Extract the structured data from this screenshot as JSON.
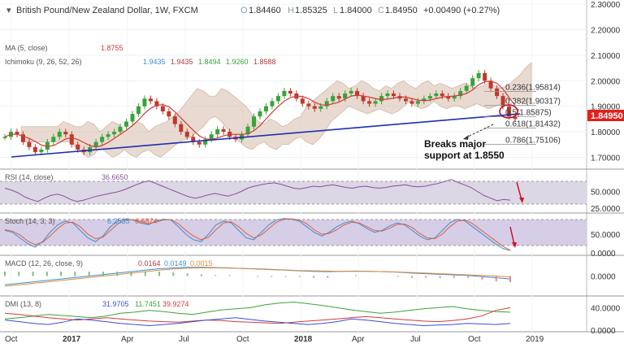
{
  "header": {
    "symbol": "British Pound/New Zealand Dollar, 1W, FXCM",
    "o_label": "O",
    "o": "1.84460",
    "h_label": "H",
    "h": "1.85325",
    "l_label": "L",
    "l": "1.84000",
    "c_label": "C",
    "c": "1.84950",
    "change": "+0.00490 (+0.27%)"
  },
  "overlay_legend": {
    "ma": {
      "label": "MA (5, close)",
      "value": "1.8755"
    },
    "ichimoku": {
      "label": "Ichimoku (9, 26, 52, 26)",
      "v1": "1.9435",
      "v2": "1.9435",
      "v3": "1.8494",
      "v4": "1.9260",
      "v5": "1.8588"
    }
  },
  "colors": {
    "up": "#3aa33a",
    "down": "#c0392b",
    "ma": "#d33a3a",
    "cloud": "#d9c2b0",
    "cloud_green": "#cfe6c0",
    "trend": "#1f2fb0",
    "rsi": "#8a4f9e",
    "stoch_k": "#3a8fd6",
    "stoch_d": "#e0603a",
    "macd": "#3a8fd6",
    "signal": "#e08a3a",
    "dmi_plus": "#3aa33a",
    "dmi_minus": "#d33a3a",
    "adx": "#3a4fd6",
    "price_tag": "#e0201c"
  },
  "chart_data": [
    {
      "type": "line",
      "title": "British Pound/New Zealand Dollar, 1W, FXCM",
      "y_axis": {
        "ticks": [
          "2.30000",
          "2.20000",
          "2.10000",
          "2.00000",
          "1.90000",
          "1.80000",
          "1.70000"
        ],
        "ylim": [
          1.66,
          2.31
        ]
      },
      "x_axis": {
        "ticks": [
          "Oct",
          "2017",
          "Apr",
          "Jul",
          "Oct",
          "2018",
          "Apr",
          "Jul",
          "Oct",
          "2019"
        ]
      },
      "last_price": "1.84950",
      "fib_levels": [
        {
          "label": "0.236(1.95814)",
          "value": 1.95814
        },
        {
          "label": "0.382(1.90317)",
          "value": 1.90317
        },
        {
          "label": "0.5(1.85875)",
          "value": 1.85875
        },
        {
          "label": "0.618(1.81432)",
          "value": 1.81432
        },
        {
          "label": "0.786(1.75106)",
          "value": 1.75106
        }
      ],
      "annotation": {
        "line1": "Breaks major",
        "line2": "support at 1.8550"
      },
      "series": [
        {
          "values": [
            1.78,
            1.8,
            1.79,
            1.76,
            1.74,
            1.72,
            1.73,
            1.76,
            1.78,
            1.8,
            1.79,
            1.75,
            1.73,
            1.72,
            1.74,
            1.76,
            1.78,
            1.79,
            1.8,
            1.82,
            1.84,
            1.87,
            1.9,
            1.93,
            1.92,
            1.9,
            1.88,
            1.86,
            1.83,
            1.8,
            1.78,
            1.76,
            1.75,
            1.77,
            1.79,
            1.81,
            1.8,
            1.78,
            1.77,
            1.79,
            1.82,
            1.86,
            1.88,
            1.9,
            1.92,
            1.94,
            1.96,
            1.95,
            1.93,
            1.91,
            1.9,
            1.89,
            1.9,
            1.92,
            1.94,
            1.93,
            1.95,
            1.96,
            1.94,
            1.92,
            1.91,
            1.92,
            1.94,
            1.95,
            1.94,
            1.93,
            1.92,
            1.91,
            1.92,
            1.93,
            1.94,
            1.95,
            1.94,
            1.93,
            1.94,
            1.96,
            1.98,
            2.01,
            2.03,
            2.0,
            1.97,
            1.94,
            1.9,
            1.86,
            1.85
          ]
        }
      ]
    },
    {
      "type": "line",
      "title": "RSI (14, close)",
      "value_label": "36.6650",
      "y_axis": {
        "ticks": [
          "50.0000",
          "25.0000"
        ],
        "ylim": [
          20,
          80
        ]
      },
      "band": [
        30,
        70
      ],
      "series": [
        {
          "values": [
            55,
            52,
            48,
            42,
            38,
            35,
            40,
            44,
            46,
            43,
            38,
            35,
            37,
            40,
            43,
            45,
            47,
            49,
            52,
            56,
            60,
            64,
            66,
            62,
            58,
            54,
            50,
            46,
            42,
            40,
            42,
            45,
            47,
            45,
            43,
            46,
            50,
            55,
            58,
            60,
            62,
            63,
            61,
            58,
            55,
            54,
            56,
            58,
            57,
            59,
            60,
            58,
            56,
            55,
            57,
            58,
            56,
            55,
            56,
            58,
            59,
            60,
            58,
            57,
            58,
            60,
            62,
            65,
            68,
            64,
            60,
            56,
            50,
            44,
            40,
            36,
            38,
            37
          ]
        }
      ]
    },
    {
      "type": "line",
      "title": "Stoch (14, 3, 3)",
      "values_label": [
        "6.2535",
        "6.6874"
      ],
      "y_axis": {
        "ticks": [
          "50.0000",
          "0.0000"
        ],
        "ylim": [
          0,
          100
        ]
      },
      "band": [
        20,
        80
      ],
      "series": [
        {
          "values": [
            60,
            55,
            40,
            25,
            15,
            30,
            55,
            75,
            85,
            80,
            60,
            40,
            30,
            45,
            70,
            85,
            90,
            88,
            80,
            75,
            85,
            90,
            88,
            70,
            50,
            35,
            30,
            50,
            75,
            85,
            80,
            60,
            40,
            35,
            55,
            75,
            88,
            92,
            90,
            85,
            70,
            55,
            45,
            55,
            70,
            80,
            85,
            78,
            65,
            55,
            60,
            72,
            80,
            75,
            60,
            45,
            35,
            40,
            60,
            80,
            90,
            85,
            70,
            55,
            40,
            25,
            12,
            6
          ]
        },
        {
          "values": [
            62,
            58,
            48,
            32,
            22,
            28,
            45,
            65,
            80,
            82,
            70,
            50,
            38,
            42,
            60,
            78,
            88,
            89,
            84,
            78,
            82,
            88,
            89,
            78,
            60,
            45,
            35,
            42,
            62,
            80,
            83,
            70,
            52,
            40,
            48,
            65,
            82,
            90,
            91,
            88,
            78,
            62,
            50,
            52,
            62,
            75,
            82,
            80,
            70,
            60,
            58,
            66,
            76,
            77,
            68,
            52,
            40,
            38,
            50,
            70,
            85,
            88,
            78,
            63,
            48,
            33,
            18,
            7
          ]
        }
      ]
    },
    {
      "type": "line",
      "title": "MACD (12, 26, close, 9)",
      "values_label": [
        "0.0164",
        "0.0149",
        "0.0015"
      ],
      "y_axis": {
        "ticks": [
          "0.0000"
        ],
        "ylim": [
          -0.06,
          0.06
        ]
      },
      "series": [
        {
          "values": [
            -0.03,
            -0.025,
            -0.02,
            -0.015,
            -0.01,
            -0.005,
            0.0,
            0.005,
            0.01,
            0.015,
            0.02,
            0.025,
            0.028,
            0.03,
            0.03,
            0.029,
            0.028,
            0.026,
            0.024,
            0.022,
            0.02,
            0.018,
            0.016,
            0.015,
            0.016,
            0.017,
            0.016,
            0.015,
            0.013,
            0.01,
            0.008,
            0.006,
            0.004,
            0.002,
            -0.002,
            -0.006,
            -0.01
          ]
        },
        {
          "values": [
            -0.035,
            -0.03,
            -0.025,
            -0.02,
            -0.015,
            -0.01,
            -0.005,
            0.0,
            0.005,
            0.01,
            0.015,
            0.02,
            0.024,
            0.027,
            0.028,
            0.028,
            0.027,
            0.026,
            0.025,
            0.023,
            0.021,
            0.019,
            0.018,
            0.017,
            0.016,
            0.016,
            0.016,
            0.015,
            0.014,
            0.012,
            0.01,
            0.008,
            0.006,
            0.004,
            0.002,
            0.0,
            -0.003
          ]
        }
      ]
    },
    {
      "type": "line",
      "title": "DMI (13, 8)",
      "values_label": [
        "31.9705",
        "11.7451",
        "39.9274"
      ],
      "y_axis": {
        "ticks": [
          "40.0000",
          "0.0000"
        ],
        "ylim": [
          0,
          55
        ]
      },
      "series": [
        {
          "values": [
            20,
            22,
            25,
            28,
            26,
            24,
            22,
            25,
            30,
            32,
            35,
            33,
            30,
            28,
            32,
            36,
            38,
            40,
            45,
            48,
            50,
            47,
            44,
            40,
            36,
            33,
            30,
            32,
            35,
            38,
            40,
            42,
            38,
            35,
            33,
            32
          ]
        },
        {
          "values": [
            30,
            28,
            25,
            22,
            20,
            18,
            20,
            22,
            20,
            18,
            16,
            15,
            14,
            16,
            18,
            17,
            15,
            14,
            13,
            12,
            14,
            16,
            18,
            20,
            22,
            24,
            22,
            20,
            18,
            16,
            15,
            17,
            20,
            25,
            35,
            40
          ]
        },
        {
          "values": [
            18,
            15,
            12,
            10,
            14,
            20,
            18,
            15,
            12,
            10,
            8,
            10,
            12,
            15,
            18,
            20,
            22,
            19,
            16,
            14,
            12,
            10,
            12,
            15,
            20,
            18,
            15,
            12,
            10,
            8,
            9,
            10,
            12,
            11,
            10,
            12
          ]
        }
      ]
    }
  ]
}
